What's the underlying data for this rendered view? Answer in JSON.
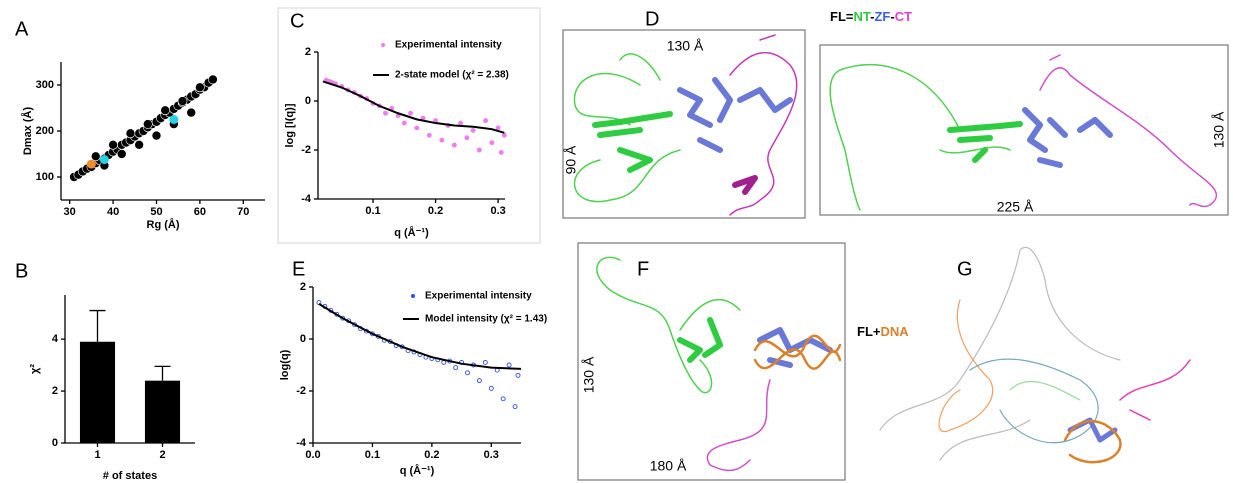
{
  "chart_data": [
    {
      "type": "scatter",
      "panel": "A",
      "xlabel": "Rg (Å)",
      "ylabel": "Dmax (Å)",
      "xlim": [
        28,
        75
      ],
      "ylim": [
        50,
        350
      ],
      "xticks": [
        30,
        40,
        50,
        60,
        70
      ],
      "yticks": [
        100,
        200,
        300
      ],
      "color": "#000000",
      "x": [
        31,
        32,
        33,
        34,
        35,
        36,
        37,
        38,
        39,
        40,
        41,
        42,
        43,
        44,
        45,
        46,
        47,
        48,
        49,
        50,
        51,
        52,
        53,
        54,
        55,
        56,
        57,
        58,
        59,
        60,
        61,
        62,
        63,
        36,
        40,
        44,
        48,
        52,
        56,
        60,
        38,
        42,
        46,
        50,
        54,
        58
      ],
      "values": [
        100,
        105,
        112,
        118,
        122,
        130,
        136,
        140,
        148,
        155,
        160,
        170,
        175,
        180,
        188,
        195,
        200,
        208,
        215,
        220,
        228,
        235,
        240,
        248,
        255,
        262,
        268,
        275,
        280,
        290,
        295,
        305,
        312,
        145,
        170,
        195,
        215,
        245,
        265,
        295,
        125,
        150,
        170,
        190,
        215,
        240
      ],
      "highlight": {
        "x": [
          35,
          38,
          54
        ],
        "values": [
          128,
          138,
          225
        ],
        "colors": [
          "#f28c28",
          "#22d3e6",
          "#22d3e6"
        ]
      }
    },
    {
      "type": "bar",
      "panel": "B",
      "xlabel": "# of states",
      "ylabel": "χ²",
      "color": "#000000",
      "categories": [
        "1",
        "2"
      ],
      "values": [
        3.9,
        2.4
      ],
      "errors": [
        1.2,
        0.55
      ],
      "ylim": [
        0,
        5.7
      ],
      "yticks": [
        0,
        2,
        4
      ]
    },
    {
      "type": "scatter",
      "panel": "C",
      "xlabel": "q (Å⁻¹)",
      "ylabel": "log [I(q)]",
      "xlim": [
        0.012,
        0.311
      ],
      "ylim": [
        -4,
        2
      ],
      "xticks": [
        0.1,
        0.2,
        0.3
      ],
      "yticks": [
        -4,
        -2,
        0,
        2
      ],
      "series": [
        {
          "name": "Experimental intensity",
          "color": "#f07ef0",
          "mode": "points",
          "x": [
            0.025,
            0.03,
            0.035,
            0.04,
            0.05,
            0.06,
            0.07,
            0.08,
            0.09,
            0.1,
            0.11,
            0.12,
            0.13,
            0.14,
            0.15,
            0.16,
            0.17,
            0.18,
            0.19,
            0.2,
            0.21,
            0.22,
            0.23,
            0.24,
            0.25,
            0.26,
            0.27,
            0.28,
            0.29,
            0.3,
            0.305,
            0.31
          ],
          "values": [
            0.85,
            0.8,
            0.75,
            0.7,
            0.6,
            0.45,
            0.35,
            0.2,
            0.1,
            -0.1,
            -0.2,
            -0.5,
            -0.3,
            -0.6,
            -0.9,
            -0.5,
            -1.1,
            -0.7,
            -1.4,
            -0.8,
            -1.6,
            -1.0,
            -1.8,
            -0.9,
            -1.5,
            -1.2,
            -2.0,
            -0.8,
            -1.7,
            -1.1,
            -2.1,
            -1.4
          ]
        },
        {
          "name": "2-state model (χ² = 2.38)",
          "color": "#000000",
          "mode": "line",
          "x": [
            0.02,
            0.05,
            0.08,
            0.11,
            0.14,
            0.17,
            0.2,
            0.23,
            0.26,
            0.29,
            0.31
          ],
          "values": [
            0.8,
            0.55,
            0.2,
            -0.2,
            -0.5,
            -0.75,
            -0.9,
            -1.0,
            -1.05,
            -1.15,
            -1.3
          ]
        }
      ]
    },
    {
      "type": "scatter",
      "panel": "E",
      "xlabel": "q (Å⁻¹)",
      "ylabel": "log(q)",
      "xlim": [
        0,
        0.35
      ],
      "ylim": [
        -4,
        2
      ],
      "xticks": [
        {
          "value": 0,
          "label": "0.0"
        },
        0.1,
        0.2,
        0.3
      ],
      "yticks": [
        -4,
        -2,
        0,
        2
      ],
      "series": [
        {
          "name": "Experimental intensity",
          "color": "#2f4fe0",
          "mode": "points",
          "x": [
            0.01,
            0.02,
            0.03,
            0.04,
            0.05,
            0.06,
            0.07,
            0.08,
            0.09,
            0.1,
            0.11,
            0.12,
            0.13,
            0.14,
            0.15,
            0.16,
            0.17,
            0.18,
            0.19,
            0.2,
            0.21,
            0.22,
            0.23,
            0.24,
            0.25,
            0.26,
            0.27,
            0.28,
            0.29,
            0.3,
            0.31,
            0.32,
            0.33,
            0.34,
            0.345
          ],
          "values": [
            1.4,
            1.25,
            1.1,
            0.95,
            0.8,
            0.7,
            0.55,
            0.4,
            0.3,
            0.2,
            0.1,
            -0.05,
            -0.1,
            -0.25,
            -0.3,
            -0.45,
            -0.5,
            -0.6,
            -0.7,
            -0.75,
            -0.8,
            -0.9,
            -0.85,
            -1.1,
            -0.9,
            -1.3,
            -1.0,
            -1.6,
            -0.9,
            -1.9,
            -1.2,
            -2.3,
            -1.0,
            -2.6,
            -1.4
          ]
        },
        {
          "name": "Model intensity (χ² = 1.43)",
          "color": "#000000",
          "mode": "line",
          "x": [
            0.01,
            0.05,
            0.1,
            0.15,
            0.2,
            0.25,
            0.3,
            0.35
          ],
          "values": [
            1.35,
            0.8,
            0.2,
            -0.3,
            -0.7,
            -0.95,
            -1.1,
            -1.15
          ]
        }
      ]
    }
  ],
  "structures": {
    "D": {
      "panel": "D",
      "legend": [
        {
          "text": "FL=",
          "color": "#000000"
        },
        {
          "text": "NT",
          "color": "#2fc838"
        },
        {
          "text": "-",
          "color": "#000000"
        },
        {
          "text": "ZF",
          "color": "#3a5fe0"
        },
        {
          "text": "-",
          "color": "#000000"
        },
        {
          "text": "CT",
          "color": "#e040d8"
        }
      ],
      "dims": [
        "130 Å",
        "90 Å",
        "225 Å",
        "130 Å"
      ]
    },
    "F": {
      "panel": "F",
      "legend": [
        {
          "text": "FL+",
          "color": "#000000"
        },
        {
          "text": "DNA",
          "color": "#d9822b"
        }
      ],
      "dims": [
        "130 Å",
        "180 Å"
      ]
    },
    "G": {
      "panel": "G"
    }
  }
}
